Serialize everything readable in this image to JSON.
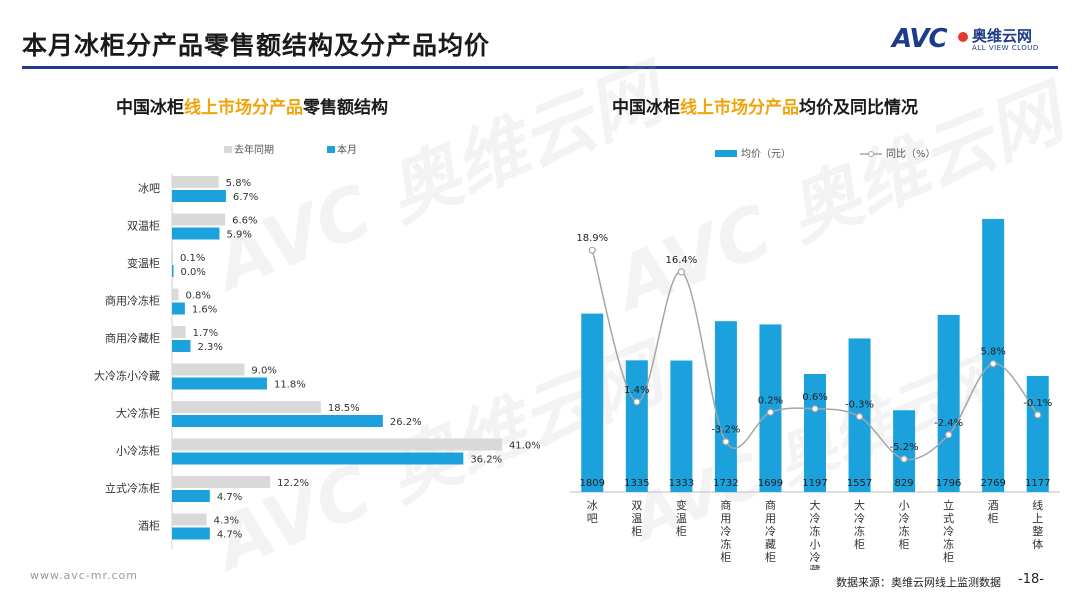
{
  "header": {
    "title": "本月冰柜分产品零售额结构及分产品均价",
    "logo_text": "AVC",
    "logo_cn": "奥维云网",
    "logo_en": "ALL VIEW CLOUD"
  },
  "watermark": {
    "text": "AVC 奥维云网"
  },
  "left_chart": {
    "title_prefix": "中国冰柜",
    "title_highlight": "线上市场分产品",
    "title_suffix": "零售额结构"
  },
  "right_chart": {
    "title_prefix": "中国冰柜",
    "title_highlight": "线上市场分产品",
    "title_suffix": "均价及同比情况"
  },
  "chart_data": [
    {
      "type": "bar",
      "orientation": "horizontal",
      "title": "中国冰柜线上市场分产品零售额结构",
      "legend_position": "top",
      "categories": [
        "冰吧",
        "双温柜",
        "变温柜",
        "商用冷冻柜",
        "商用冷藏柜",
        "大冷冻小冷藏",
        "大冷冻柜",
        "小冷冻柜",
        "立式冷冻柜",
        "酒柜"
      ],
      "series": [
        {
          "name": "去年同期",
          "color": "#d9d9d9",
          "values": [
            5.8,
            6.6,
            0.1,
            0.8,
            1.7,
            9.0,
            18.5,
            41.0,
            12.2,
            4.3
          ],
          "labels": [
            "5.8%",
            "6.6%",
            "0.1%",
            "0.8%",
            "1.7%",
            "9.0%",
            "18.5%",
            "41.0%",
            "12.2%",
            "4.3%"
          ]
        },
        {
          "name": "本月",
          "color": "#1ba1dc",
          "values": [
            6.7,
            5.9,
            0.0,
            1.6,
            2.3,
            11.8,
            26.2,
            36.2,
            4.7,
            4.7
          ],
          "labels": [
            "6.7%",
            "5.9%",
            "0.0%",
            "1.6%",
            "2.3%",
            "11.8%",
            "26.2%",
            "36.2%",
            "4.7%",
            "4.7%"
          ]
        }
      ],
      "xlim": [
        0,
        42
      ]
    },
    {
      "type": "bar",
      "secondary_type": "line",
      "title": "中国冰柜线上市场分产品均价及同比情况",
      "legend_position": "top",
      "categories": [
        "冰吧",
        "双温柜",
        "变温柜",
        "商用冷冻柜",
        "商用冷藏柜",
        "大冷冻小冷藏",
        "大冷冻柜",
        "小冷冻柜",
        "立式冷冻柜",
        "酒柜",
        "线上整体"
      ],
      "series": [
        {
          "name": "均价（元）",
          "color": "#1ba1dc",
          "values": [
            1809,
            1335,
            1333,
            1732,
            1699,
            1197,
            1557,
            829,
            1796,
            2769,
            1177
          ],
          "labels": [
            "1809",
            "1335",
            "1333",
            "1732",
            "1699",
            "1197",
            "1557",
            "829",
            "1796",
            "2769",
            "1177"
          ]
        },
        {
          "name": "同比（%）",
          "color": "#a6a6a6",
          "values": [
            18.9,
            1.4,
            16.4,
            -3.2,
            0.2,
            0.6,
            -0.3,
            -5.2,
            -2.4,
            5.8,
            -0.1
          ],
          "labels": [
            "18.9%",
            "1.4%",
            "16.4%",
            "-3.2%",
            "0.2%",
            "0.6%",
            "-0.3%",
            "-5.2%",
            "-2.4%",
            "5.8%",
            "-0.1%"
          ]
        }
      ],
      "ylim": [
        0,
        2900
      ],
      "y2lim": [
        -9,
        24
      ]
    }
  ],
  "footer": {
    "url": "www.avc-mr.com",
    "source": "数据来源：奥维云网线上监测数据",
    "page": "-18-"
  }
}
